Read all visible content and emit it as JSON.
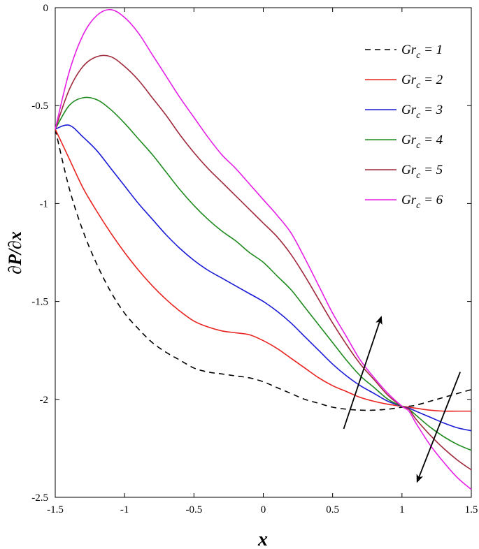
{
  "chart_data": {
    "type": "line",
    "title": "",
    "xlabel": "x",
    "ylabel": "∂P/∂x",
    "xlim": [
      -1.5,
      1.5
    ],
    "ylim": [
      -2.5,
      0
    ],
    "xticks": [
      -1.5,
      -1,
      -0.5,
      0,
      0.5,
      1,
      1.5
    ],
    "xtick_labels": [
      "-1.5",
      "-1",
      "-0.5",
      "0",
      "0.5",
      "1",
      "1.5"
    ],
    "yticks": [
      0,
      -0.5,
      -1,
      -1.5,
      -2,
      -2.5
    ],
    "ytick_labels": [
      "0",
      "-0.5",
      "-1",
      "-1.5",
      "-2",
      "-2.5"
    ],
    "grid": false,
    "legend_position": "top-right",
    "x": [
      -1.5,
      -1.4,
      -1.3,
      -1.2,
      -1.1,
      -1.0,
      -0.9,
      -0.8,
      -0.7,
      -0.6,
      -0.5,
      -0.4,
      -0.3,
      -0.2,
      -0.1,
      0.0,
      0.1,
      0.2,
      0.3,
      0.4,
      0.5,
      0.6,
      0.7,
      0.8,
      0.9,
      1.0,
      1.05,
      1.1,
      1.2,
      1.3,
      1.4,
      1.5
    ],
    "series": [
      {
        "name": "Gr",
        "sub": "c",
        "suffix": " = 1",
        "color": "#000000",
        "dash": "8,6",
        "values": [
          -0.62,
          -0.92,
          -1.14,
          -1.31,
          -1.45,
          -1.56,
          -1.64,
          -1.71,
          -1.76,
          -1.8,
          -1.84,
          -1.86,
          -1.87,
          -1.88,
          -1.89,
          -1.91,
          -1.94,
          -1.97,
          -2.0,
          -2.02,
          -2.04,
          -2.05,
          -2.055,
          -2.055,
          -2.05,
          -2.04,
          -2.035,
          -2.03,
          -2.01,
          -1.99,
          -1.97,
          -1.95
        ]
      },
      {
        "name": "Gr",
        "sub": "c",
        "suffix": " = 2",
        "color": "#e8231f",
        "dash": "",
        "values": [
          -0.62,
          -0.77,
          -0.92,
          -1.04,
          -1.15,
          -1.25,
          -1.34,
          -1.42,
          -1.49,
          -1.55,
          -1.6,
          -1.63,
          -1.65,
          -1.66,
          -1.67,
          -1.7,
          -1.74,
          -1.79,
          -1.84,
          -1.89,
          -1.93,
          -1.96,
          -1.99,
          -2.01,
          -2.025,
          -2.035,
          -2.04,
          -2.045,
          -2.055,
          -2.06,
          -2.06,
          -2.06
        ]
      },
      {
        "name": "Gr",
        "sub": "c",
        "suffix": " = 3",
        "color": "#1a1ad6",
        "dash": "",
        "values": [
          -0.62,
          -0.6,
          -0.66,
          -0.73,
          -0.82,
          -0.91,
          -1.0,
          -1.08,
          -1.16,
          -1.23,
          -1.29,
          -1.34,
          -1.38,
          -1.42,
          -1.46,
          -1.5,
          -1.55,
          -1.61,
          -1.68,
          -1.75,
          -1.82,
          -1.88,
          -1.93,
          -1.97,
          -2.01,
          -2.035,
          -2.045,
          -2.06,
          -2.09,
          -2.12,
          -2.145,
          -2.16
        ]
      },
      {
        "name": "Gr",
        "sub": "c",
        "suffix": " = 4",
        "color": "#1e8a1e",
        "dash": "",
        "values": [
          -0.62,
          -0.5,
          -0.46,
          -0.47,
          -0.52,
          -0.59,
          -0.67,
          -0.75,
          -0.84,
          -0.93,
          -1.01,
          -1.08,
          -1.14,
          -1.19,
          -1.25,
          -1.3,
          -1.37,
          -1.44,
          -1.53,
          -1.62,
          -1.71,
          -1.8,
          -1.88,
          -1.94,
          -2.0,
          -2.035,
          -2.05,
          -2.08,
          -2.14,
          -2.19,
          -2.23,
          -2.26
        ]
      },
      {
        "name": "Gr",
        "sub": "c",
        "suffix": " = 5",
        "color": "#9e2a3c",
        "dash": "",
        "values": [
          -0.62,
          -0.42,
          -0.3,
          -0.25,
          -0.25,
          -0.3,
          -0.37,
          -0.46,
          -0.55,
          -0.65,
          -0.74,
          -0.82,
          -0.89,
          -0.96,
          -1.03,
          -1.1,
          -1.17,
          -1.26,
          -1.37,
          -1.49,
          -1.61,
          -1.72,
          -1.82,
          -1.9,
          -1.98,
          -2.035,
          -2.05,
          -2.1,
          -2.18,
          -2.25,
          -2.31,
          -2.36
        ]
      },
      {
        "name": "Gr",
        "sub": "c",
        "suffix": " = 6",
        "color": "#e61fe6",
        "dash": "",
        "values": [
          -0.62,
          -0.33,
          -0.14,
          -0.04,
          -0.01,
          -0.05,
          -0.13,
          -0.24,
          -0.35,
          -0.46,
          -0.56,
          -0.66,
          -0.75,
          -0.82,
          -0.9,
          -0.98,
          -1.06,
          -1.15,
          -1.28,
          -1.42,
          -1.56,
          -1.68,
          -1.8,
          -1.89,
          -1.97,
          -2.035,
          -2.06,
          -2.12,
          -2.23,
          -2.32,
          -2.4,
          -2.46
        ]
      }
    ],
    "annotations": [
      {
        "type": "arrow",
        "description": "increasing Gr_c (upward)",
        "from": [
          0.58,
          -2.15
        ],
        "to": [
          0.85,
          -1.58
        ]
      },
      {
        "type": "arrow",
        "description": "increasing Gr_c (downward)",
        "from": [
          1.42,
          -1.86
        ],
        "to": [
          1.11,
          -2.42
        ]
      }
    ]
  }
}
